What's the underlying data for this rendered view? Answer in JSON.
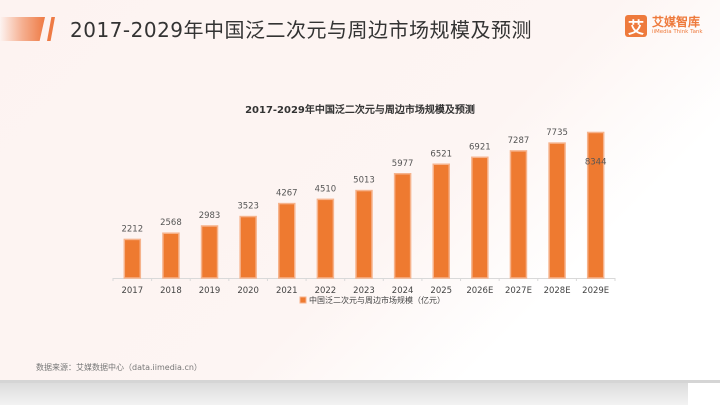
{
  "header": {
    "title": "2017-2029年中国泛二次元与周边市场规模及预测"
  },
  "logo": {
    "mark": "艾",
    "name_cn": "艾媒智库",
    "name_en": "iiMedia Think Tank"
  },
  "footer": {
    "source": "数据来源：艾媒数据中心（data.iimedia.cn）"
  },
  "colors": {
    "bar": "#ee7a30",
    "bar_edge": "#f6b38c",
    "accent": "#ee7a44"
  },
  "chart_data": {
    "type": "bar",
    "title": "2017-2029年中国泛二次元与周边市场规模及预测",
    "xlabel": "",
    "ylabel": "",
    "categories": [
      "2017",
      "2018",
      "2019",
      "2020",
      "2021",
      "2022",
      "2023",
      "2024",
      "2025",
      "2026E",
      "2027E",
      "2028E",
      "2029E"
    ],
    "series": [
      {
        "name": "中国泛二次元与周边市场规模（亿元）",
        "values": [
          2212,
          2568,
          2983,
          3523,
          4267,
          4510,
          5013,
          5977,
          6521,
          6921,
          7287,
          7735,
          8344
        ]
      }
    ],
    "ylim": [
      0,
      8600
    ],
    "grid": false,
    "legend": "bottom-center"
  }
}
